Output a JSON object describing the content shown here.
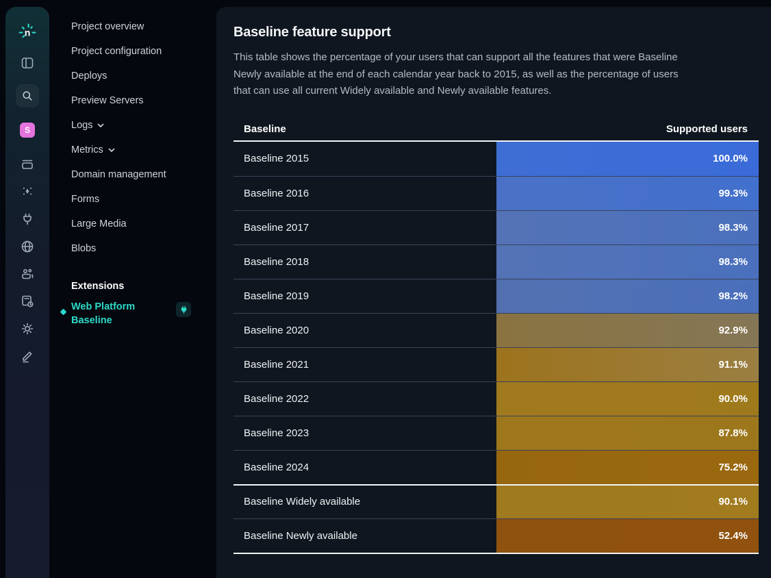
{
  "colors": {
    "accent_teal": "#2dd9c8",
    "avatar_pink": "#e473dd",
    "panel_bg": "#10161f",
    "page_bg": "#04080e",
    "separator_white": "#f2f5f8"
  },
  "rail": {
    "avatar_letter": "S",
    "icons": [
      "netlify-logo",
      "panel-toggle-icon",
      "search-icon",
      "avatar",
      "deploys-box-icon",
      "sparkles-icon",
      "plug-icon",
      "globe-icon",
      "team-icon",
      "forms-icon",
      "gear-icon",
      "pencil-icon"
    ]
  },
  "sidebar": {
    "items": [
      {
        "label": "Project overview",
        "has_chevron": false
      },
      {
        "label": "Project configuration",
        "has_chevron": false
      },
      {
        "label": "Deploys",
        "has_chevron": false
      },
      {
        "label": "Preview Servers",
        "has_chevron": false
      },
      {
        "label": "Logs",
        "has_chevron": true
      },
      {
        "label": "Metrics",
        "has_chevron": true
      },
      {
        "label": "Domain management",
        "has_chevron": false
      },
      {
        "label": "Forms",
        "has_chevron": false
      },
      {
        "label": "Large Media",
        "has_chevron": false
      },
      {
        "label": "Blobs",
        "has_chevron": false
      }
    ],
    "extensions_heading": "Extensions",
    "extension": {
      "name": "Web Platform Baseline",
      "badge_icon": "plug-icon"
    }
  },
  "main": {
    "title": "Baseline feature support",
    "description": "This table shows the percentage of your users that can support all the features that were Baseline Newly available at the end of each calendar year back to 2015, as well as the percentage of users that can use all current Widely available and Newly available features.",
    "table": {
      "columns": [
        "Baseline",
        "Supported users"
      ],
      "year_rows": [
        {
          "label": "Baseline 2015",
          "value": "100.0%",
          "color_left": "#3e6ed4",
          "color_right": "#3a6bd9"
        },
        {
          "label": "Baseline 2016",
          "value": "99.3%",
          "color_left": "#4a71c6",
          "color_right": "#4270cd"
        },
        {
          "label": "Baseline 2017",
          "value": "98.3%",
          "color_left": "#5473b6",
          "color_right": "#4a70bd"
        },
        {
          "label": "Baseline 2018",
          "value": "98.3%",
          "color_left": "#5473b6",
          "color_right": "#4a70bd"
        },
        {
          "label": "Baseline 2019",
          "value": "98.2%",
          "color_left": "#5270af",
          "color_right": "#4a6fbb"
        },
        {
          "label": "Baseline 2020",
          "value": "92.9%",
          "color_left": "#8a7340",
          "color_right": "#857756"
        },
        {
          "label": "Baseline 2021",
          "value": "91.1%",
          "color_left": "#9d731d",
          "color_right": "#9a7f42"
        },
        {
          "label": "Baseline 2022",
          "value": "90.0%",
          "color_left": "#a17a1d",
          "color_right": "#9f7a1c"
        },
        {
          "label": "Baseline 2023",
          "value": "87.8%",
          "color_left": "#9e771c",
          "color_right": "#9d771c"
        },
        {
          "label": "Baseline 2024",
          "value": "75.2%",
          "color_left": "#97670f",
          "color_right": "#9a680f"
        }
      ],
      "summary_rows": [
        {
          "label": "Baseline Widely available",
          "value": "90.1%",
          "color_left": "#a07a1e",
          "color_right": "#a17b1e"
        },
        {
          "label": "Baseline Newly available",
          "value": "52.4%",
          "color_left": "#8f520f",
          "color_right": "#90520e"
        }
      ]
    }
  },
  "chart_data": {
    "type": "table",
    "title": "Baseline feature support",
    "columns": [
      "Baseline",
      "Supported users (%)"
    ],
    "rows": [
      [
        "Baseline 2015",
        100.0
      ],
      [
        "Baseline 2016",
        99.3
      ],
      [
        "Baseline 2017",
        98.3
      ],
      [
        "Baseline 2018",
        98.3
      ],
      [
        "Baseline 2019",
        98.2
      ],
      [
        "Baseline 2020",
        92.9
      ],
      [
        "Baseline 2021",
        91.1
      ],
      [
        "Baseline 2022",
        90.0
      ],
      [
        "Baseline 2023",
        87.8
      ],
      [
        "Baseline 2024",
        75.2
      ],
      [
        "Baseline Widely available",
        90.1
      ],
      [
        "Baseline Newly available",
        52.4
      ]
    ],
    "value_encoding": "cell background color: blue = high support, gold/brown = lower support"
  }
}
